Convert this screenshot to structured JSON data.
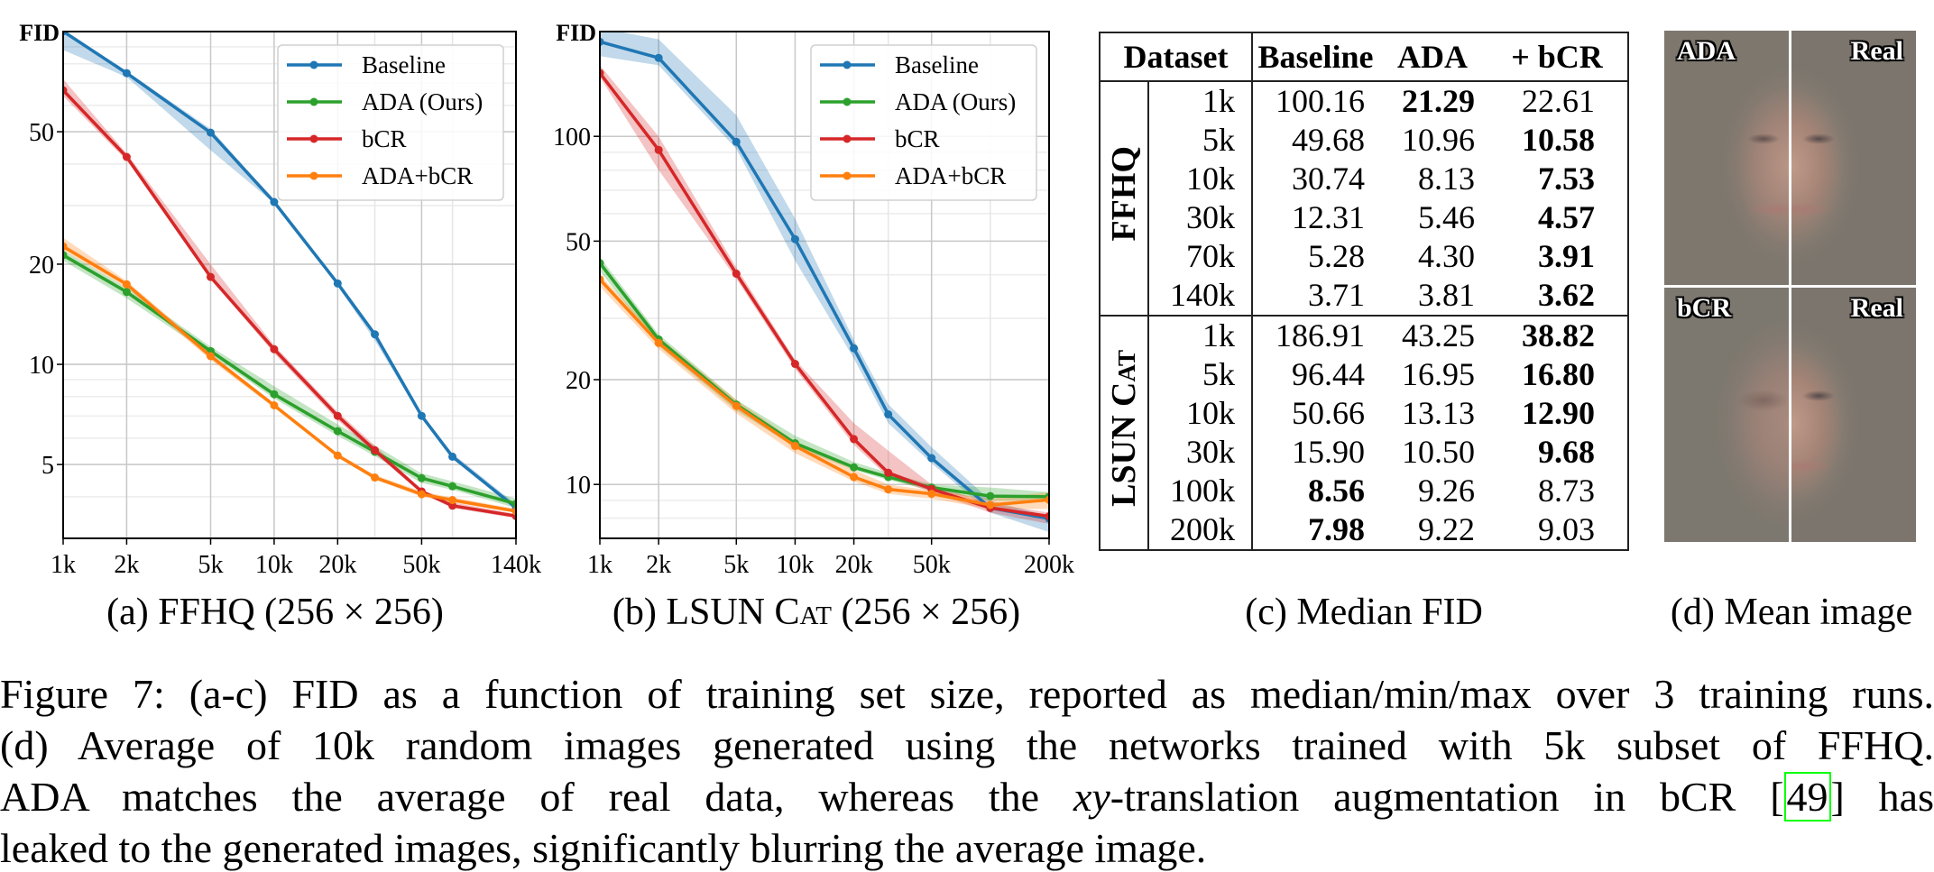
{
  "colors": {
    "Baseline": "#1f77b4",
    "ADA (Ours)": "#2ca02c",
    "bCR": "#d62728",
    "ADA+bCR": "#ff7f0e"
  },
  "chart_data": [
    {
      "type": "line",
      "ylabel": "FID",
      "xscale": "log",
      "yscale": "log",
      "xlim": [
        1000,
        140000
      ],
      "ylim": [
        3,
        100
      ],
      "xticks": [
        1000,
        2000,
        5000,
        10000,
        20000,
        50000,
        140000
      ],
      "xtick_labels": [
        "1k",
        "2k",
        "5k",
        "10k",
        "20k",
        "50k",
        "140k"
      ],
      "yticks": [
        5,
        10,
        20,
        50
      ],
      "ytick_labels": [
        "5",
        "10",
        "20",
        "50"
      ],
      "grid": true,
      "legend": "top-right",
      "x": [
        1000,
        2000,
        5000,
        10000,
        20000,
        30000,
        50000,
        70000,
        140000
      ],
      "series": [
        {
          "name": "Baseline",
          "values": [
            100.16,
            75,
            49.68,
            30.74,
            17.5,
            12.31,
            7.0,
            5.28,
            3.71
          ],
          "min": [
            88,
            73,
            44,
            30.5,
            17.2,
            11.8,
            6.9,
            5.2,
            3.65
          ],
          "max": [
            101,
            76,
            51,
            31,
            17.8,
            12.5,
            7.1,
            5.4,
            3.8
          ]
        },
        {
          "name": "ADA (Ours)",
          "values": [
            21.29,
            16.5,
            10.96,
            8.13,
            6.3,
            5.46,
            4.55,
            4.3,
            3.81
          ],
          "min": [
            20.5,
            15.8,
            10.7,
            7.9,
            6.1,
            5.3,
            4.4,
            4.2,
            3.7
          ],
          "max": [
            22,
            17,
            11.3,
            8.6,
            6.6,
            5.7,
            4.7,
            4.45,
            3.95
          ]
        },
        {
          "name": "bCR",
          "values": [
            66.6,
            42,
            18.3,
            11.1,
            7.0,
            5.52,
            4.15,
            3.76,
            3.5
          ],
          "min": [
            64,
            41,
            18,
            10.8,
            6.8,
            5.4,
            4.1,
            3.7,
            3.45
          ],
          "max": [
            72,
            43,
            20,
            11.4,
            7.2,
            5.7,
            4.2,
            3.85,
            3.55
          ]
        },
        {
          "name": "ADA+bCR",
          "values": [
            22.61,
            17.4,
            10.58,
            7.53,
            5.32,
            4.57,
            4.07,
            3.91,
            3.62
          ],
          "min": [
            22,
            17,
            10.3,
            7.4,
            5.25,
            4.5,
            4.0,
            3.85,
            3.58
          ],
          "max": [
            24,
            17.8,
            10.8,
            7.6,
            5.4,
            4.65,
            4.15,
            3.98,
            3.68
          ]
        }
      ]
    },
    {
      "type": "line",
      "ylabel": "FID",
      "xscale": "log",
      "yscale": "log",
      "xlim": [
        1000,
        200000
      ],
      "ylim": [
        7,
        200
      ],
      "xticks": [
        1000,
        2000,
        5000,
        10000,
        20000,
        50000,
        200000
      ],
      "xtick_labels": [
        "1k",
        "2k",
        "5k",
        "10k",
        "20k",
        "50k",
        "200k"
      ],
      "yticks": [
        10,
        20,
        50,
        100
      ],
      "ytick_labels": [
        "10",
        "20",
        "50",
        "100"
      ],
      "grid": true,
      "legend": "top-right",
      "x": [
        1000,
        2000,
        5000,
        10000,
        20000,
        30000,
        50000,
        100000,
        200000
      ],
      "series": [
        {
          "name": "Baseline",
          "values": [
            186.91,
            168,
            96.44,
            50.66,
            24.6,
            15.9,
            11.9,
            8.56,
            7.98
          ],
          "min": [
            170,
            160,
            92,
            44,
            23,
            15,
            11.5,
            8.3,
            7.3
          ],
          "max": [
            205,
            190,
            115,
            58,
            26,
            17,
            12.8,
            9,
            8.1
          ]
        },
        {
          "name": "ADA (Ours)",
          "values": [
            43.25,
            26.1,
            16.95,
            13.13,
            11.2,
            10.5,
            9.8,
            9.26,
            9.22
          ],
          "min": [
            41,
            25,
            16.3,
            12.8,
            11,
            10.3,
            9.6,
            9,
            9
          ],
          "max": [
            45,
            27,
            17.5,
            13.8,
            11.6,
            10.8,
            10,
            9.8,
            9.5
          ]
        },
        {
          "name": "bCR",
          "values": [
            152,
            91.4,
            40.3,
            22.2,
            13.5,
            10.8,
            9.7,
            8.56,
            8.1
          ],
          "min": [
            148,
            80,
            39,
            21.5,
            13,
            10.5,
            9.5,
            8.3,
            7.7
          ],
          "max": [
            160,
            100,
            42,
            22.8,
            15,
            12.5,
            10,
            8.8,
            8.3
          ]
        },
        {
          "name": "ADA+bCR",
          "values": [
            38.82,
            25.5,
            16.8,
            12.9,
            10.5,
            9.68,
            9.4,
            8.73,
            9.03
          ],
          "min": [
            37,
            24.5,
            16,
            12.3,
            10.2,
            9.4,
            9.1,
            8.5,
            8.5
          ],
          "max": [
            40,
            26.5,
            17.5,
            13.3,
            11,
            10,
            9.6,
            9.1,
            9.5
          ]
        }
      ]
    }
  ],
  "subcaptions": {
    "a": {
      "prefix": "(a) FFHQ (256 × 256)"
    },
    "b": {
      "prefix": "(b) ",
      "name": "LSUN Cat",
      "suffix": " (256 × 256)"
    },
    "c": "(c) Median FID",
    "d": "(d) Mean image"
  },
  "table": {
    "headers": {
      "dataset": "Dataset",
      "baseline": "Baseline",
      "ada": "ADA",
      "bcr": "+ bCR"
    },
    "groups": [
      {
        "name": "FFHQ",
        "rows": [
          {
            "size": "1k",
            "baseline": "100.16",
            "ada": "21.29",
            "bcr": "22.61",
            "bold": "ada"
          },
          {
            "size": "5k",
            "baseline": "49.68",
            "ada": "10.96",
            "bcr": "10.58",
            "bold": "bcr"
          },
          {
            "size": "10k",
            "baseline": "30.74",
            "ada": "8.13",
            "bcr": "7.53",
            "bold": "bcr"
          },
          {
            "size": "30k",
            "baseline": "12.31",
            "ada": "5.46",
            "bcr": "4.57",
            "bold": "bcr"
          },
          {
            "size": "70k",
            "baseline": "5.28",
            "ada": "4.30",
            "bcr": "3.91",
            "bold": "bcr"
          },
          {
            "size": "140k",
            "baseline": "3.71",
            "ada": "3.81",
            "bcr": "3.62",
            "bold": "bcr"
          }
        ]
      },
      {
        "name": "LSUN Cat",
        "rows": [
          {
            "size": "1k",
            "baseline": "186.91",
            "ada": "43.25",
            "bcr": "38.82",
            "bold": "bcr"
          },
          {
            "size": "5k",
            "baseline": "96.44",
            "ada": "16.95",
            "bcr": "16.80",
            "bold": "bcr"
          },
          {
            "size": "10k",
            "baseline": "50.66",
            "ada": "13.13",
            "bcr": "12.90",
            "bold": "bcr"
          },
          {
            "size": "30k",
            "baseline": "15.90",
            "ada": "10.50",
            "bcr": "9.68",
            "bold": "bcr"
          },
          {
            "size": "100k",
            "baseline": "8.56",
            "ada": "9.26",
            "bcr": "8.73",
            "bold": "baseline"
          },
          {
            "size": "200k",
            "baseline": "7.98",
            "ada": "9.22",
            "bcr": "9.03",
            "bold": "baseline"
          }
        ]
      }
    ]
  },
  "mean_images": {
    "top_left": "ADA",
    "top_right": "Real",
    "bottom_left": "bCR",
    "bottom_right": "Real"
  },
  "caption": {
    "line1": "Figure 7: (a-c) FID as a function of training set size, reported as median/min/max over 3 training runs.",
    "line2": "(d) Average of 10k random images generated using the networks trained with 5k subset of FFHQ.",
    "line3_a": "ADA matches the average of real data, whereas the ",
    "line3_math": "xy",
    "line3_b": "-translation augmentation in bCR [",
    "line3_cite": "49",
    "line3_c": "] has",
    "line4": "leaked to the generated images, significantly blurring the average image."
  }
}
